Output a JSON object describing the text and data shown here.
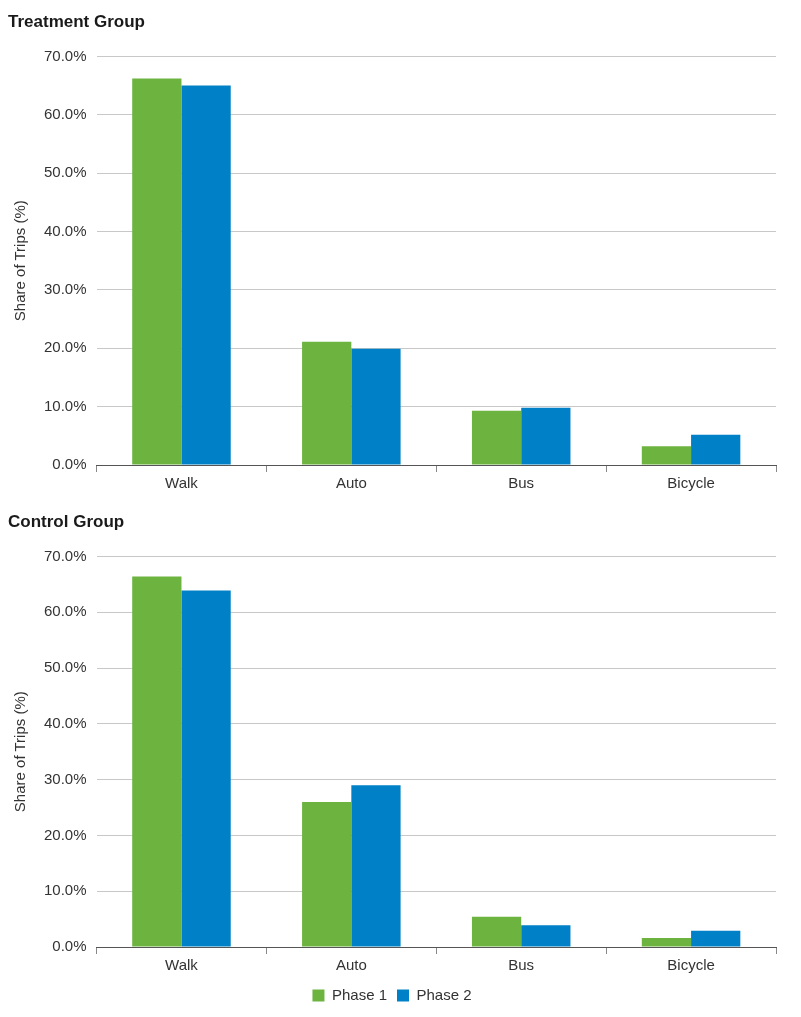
{
  "chart_data": [
    {
      "type": "bar",
      "title": "Treatment Group",
      "ylabel": "Share of Trips (%)",
      "categories": [
        "Walk",
        "Auto",
        "Bus",
        "Bicycle"
      ],
      "series": [
        {
          "color": "#6db33f",
          "values": [
            66.2,
            21.1,
            9.3,
            3.2
          ]
        },
        {
          "color": "#0080c6",
          "values": [
            65.0,
            19.9,
            9.8,
            5.2
          ]
        }
      ],
      "ylim": [
        0,
        70
      ],
      "yticks": [
        {
          "value": 0,
          "label": "0.0%"
        },
        {
          "value": 10,
          "label": "10.0%"
        },
        {
          "value": 20,
          "label": "20.0%"
        },
        {
          "value": 30,
          "label": "30.0%"
        },
        {
          "value": 40,
          "label": "40.0%"
        },
        {
          "value": 50,
          "label": "50.0%"
        },
        {
          "value": 60,
          "label": "60.0%"
        },
        {
          "value": 70,
          "label": "70.0%"
        }
      ],
      "grid": "y",
      "legend": false
    },
    {
      "type": "bar",
      "title": "Control Group",
      "ylabel": "Share of Trips (%)",
      "categories": [
        "Walk",
        "Auto",
        "Bus",
        "Bicycle"
      ],
      "series": [
        {
          "name": "Phase 1",
          "color": "#6db33f",
          "values": [
            66.4,
            26.0,
            5.4,
            1.6
          ]
        },
        {
          "name": "Phase 2",
          "color": "#0080c6",
          "values": [
            63.9,
            29.0,
            3.9,
            2.9
          ]
        }
      ],
      "ylim": [
        0,
        70
      ],
      "yticks": [
        {
          "value": 0,
          "label": "0.0%"
        },
        {
          "value": 10,
          "label": "10.0%"
        },
        {
          "value": 20,
          "label": "20.0%"
        },
        {
          "value": 30,
          "label": "30.0%"
        },
        {
          "value": 40,
          "label": "40.0%"
        },
        {
          "value": 50,
          "label": "50.0%"
        },
        {
          "value": 60,
          "label": "60.0%"
        },
        {
          "value": 70,
          "label": "70.0%"
        }
      ],
      "grid": "y",
      "legend": "bottom"
    }
  ]
}
